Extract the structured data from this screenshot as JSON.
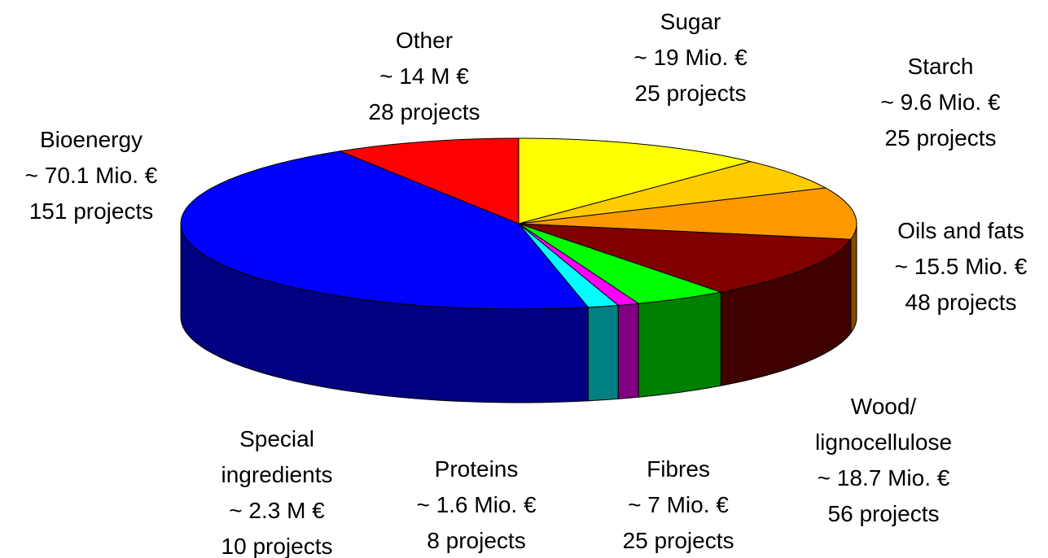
{
  "chart_data": {
    "type": "pie3d",
    "categories": [
      "Sugar",
      "Starch",
      "Oils and fats",
      "Wood/\nlignocellulose",
      "Fibres",
      "Proteins",
      "Special\ningredients",
      "Bioenergy",
      "Other"
    ],
    "values": [
      19,
      9.6,
      15.5,
      18.7,
      7,
      1.6,
      2.3,
      70.1,
      14
    ],
    "value_labels": [
      "~ 19 Mio. €",
      "~ 9.6 Mio. €",
      "~ 15.5 Mio. €",
      "~ 18.7 Mio. €",
      "~ 7 Mio. €",
      "~ 1.6 Mio. €",
      "~ 2.3 M €",
      "~ 70.1 Mio. €",
      "~ 14 M €"
    ],
    "projects": {
      "values": [
        25,
        25,
        48,
        56,
        25,
        8,
        10,
        151,
        28
      ],
      "value_labels": [
        "25 projects",
        "25 projects",
        "48 projects",
        "56 projects",
        "25 projects",
        "8 projects",
        "10 projects",
        "151 projects",
        "28 projects"
      ]
    },
    "colors": [
      "#ffff00",
      "#ffcc00",
      "#ff9900",
      "#800000",
      "#00ff00",
      "#ff00ff",
      "#00ffff",
      "#0000ff",
      "#ff0000"
    ]
  }
}
